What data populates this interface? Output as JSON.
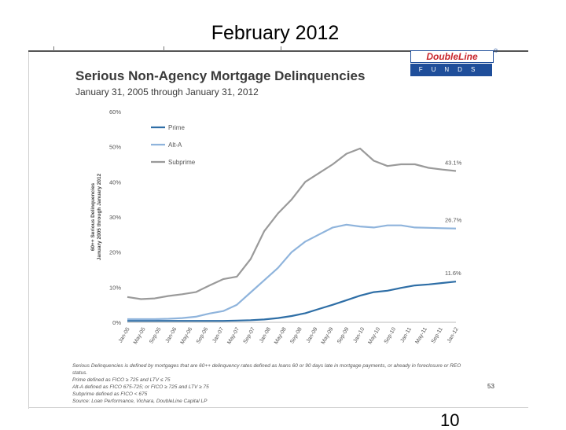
{
  "slide": {
    "title": "February 2012",
    "page_number": "10"
  },
  "logo": {
    "top_text": "DoubleLine",
    "bottom_text": "FUNDS",
    "reg_mark": "®"
  },
  "chart_data": {
    "type": "line",
    "title": "Serious Non-Agency Mortgage Delinquencies",
    "subtitle": "January 31, 2005 through January 31, 2012",
    "ylabel": "60++ Serious Delinquencies\nJanuary 2005 through January 2012",
    "xlabel": "",
    "ylim": [
      0,
      60
    ],
    "yticks": [
      0,
      10,
      20,
      30,
      40,
      50,
      60
    ],
    "ytick_labels": [
      "0%",
      "10%",
      "20%",
      "30%",
      "40%",
      "50%",
      "60%"
    ],
    "x_tick_labels": [
      "Jan-05",
      "May-05",
      "Sep-05",
      "Jan-06",
      "May-06",
      "Sep-06",
      "Jan-07",
      "May-07",
      "Sep-07",
      "Jan-08",
      "May-08",
      "Sep-08",
      "Jan-09",
      "May-09",
      "Sep-09",
      "Jan-10",
      "May-10",
      "Sep-10",
      "Jan-11",
      "May-11",
      "Sep-11",
      "Jan-12"
    ],
    "legend_position": "top-left",
    "series": [
      {
        "name": "Prime",
        "color": "#2e6ea6",
        "end_label": "11.6%",
        "values": [
          0.4,
          0.4,
          0.4,
          0.4,
          0.4,
          0.4,
          0.4,
          0.4,
          0.5,
          0.6,
          0.8,
          1.2,
          1.8,
          2.6,
          3.8,
          5.0,
          6.3,
          7.6,
          8.6,
          9.0,
          9.8,
          10.5,
          10.8,
          11.2,
          11.6
        ]
      },
      {
        "name": "Alt-A",
        "color": "#8fb4dc",
        "end_label": "26.7%",
        "values": [
          0.9,
          0.9,
          0.9,
          1.0,
          1.2,
          1.6,
          2.5,
          3.2,
          5.0,
          8.5,
          12.0,
          15.5,
          20.0,
          23.0,
          25.0,
          27.0,
          27.8,
          27.3,
          27.0,
          27.6,
          27.6,
          27.0,
          26.9,
          26.8,
          26.7
        ]
      },
      {
        "name": "Subprime",
        "color": "#9a9a9a",
        "end_label": "43.1%",
        "values": [
          7.2,
          6.6,
          6.8,
          7.5,
          8.0,
          8.6,
          10.5,
          12.3,
          13.0,
          18.0,
          26.0,
          31.0,
          35.0,
          40.0,
          42.5,
          45.0,
          48.0,
          49.5,
          46.0,
          44.5,
          45.0,
          45.0,
          44.0,
          43.5,
          43.1
        ]
      }
    ]
  },
  "footnotes": [
    "Serious Delinquencies is defined by mortgages that are 60++ delinquency rates defined as loans 60 or 90 days late in mortgage payments, or already in foreclosure or REO",
    "status.",
    "Prime defined as FICO ≥ 725 and   LTV ≤ 75",
    "Alt-A defined as FICO 675-725; or FICO ≥ 725 and LTV ≥ 75",
    "Subprime defined as FICO < 675",
    "Source: Loan Performance, Vichara, DoubleLine Capital LP"
  ],
  "inner_page_number": "53"
}
